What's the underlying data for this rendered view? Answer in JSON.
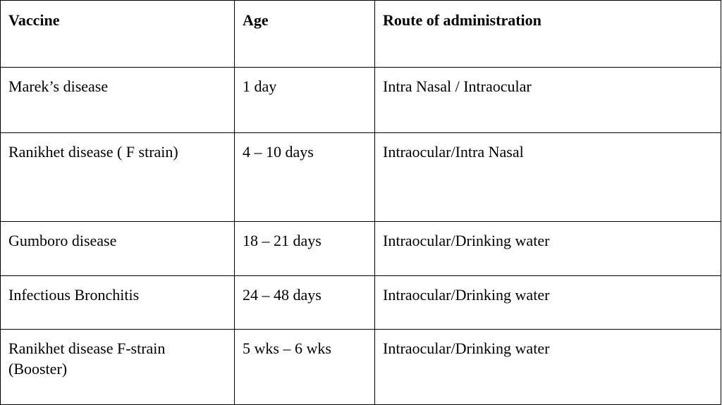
{
  "table": {
    "headers": {
      "vaccine": "Vaccine",
      "age": "Age",
      "route": "Route of administration"
    },
    "rows": [
      {
        "vaccine": "Marek’s disease",
        "age": "1 day",
        "route": "Intra Nasal / Intraocular"
      },
      {
        "vaccine": "Ranikhet disease ( F strain)",
        "age": "4 – 10 days",
        "route": "Intraocular/Intra Nasal"
      },
      {
        "vaccine": "Gumboro disease",
        "age": "18 – 21 days",
        "route": "Intraocular/Drinking water"
      },
      {
        "vaccine": "Infectious Bronchitis",
        "age": "24 – 48 days",
        "route": "Intraocular/Drinking water"
      },
      {
        "vaccine": "Ranikhet disease F-strain (Booster)",
        "age": "5 wks – 6 wks",
        "route": "Intraocular/Drinking water"
      }
    ]
  }
}
